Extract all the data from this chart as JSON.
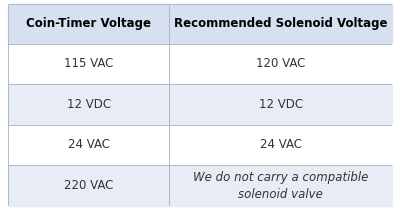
{
  "col1_header": "Coin-Timer Voltage",
  "col2_header": "Recommended Solenoid Voltage",
  "rows": [
    [
      "115 VAC",
      "120 VAC"
    ],
    [
      "12 VDC",
      "12 VDC"
    ],
    [
      "24 VAC",
      "24 VAC"
    ],
    [
      "220 VAC",
      "We do not carry a compatible\nsolenoid valve"
    ]
  ],
  "header_bg": "#d6e0f0",
  "row_bg_white": "#ffffff",
  "row_bg_gray": "#e8edf5",
  "border_color": "#b0b8c8",
  "header_text_color": "#000000",
  "body_text_color": "#333333",
  "italic_row": 3,
  "col_split": 0.42,
  "header_fontsize": 8.5,
  "body_fontsize": 8.5
}
